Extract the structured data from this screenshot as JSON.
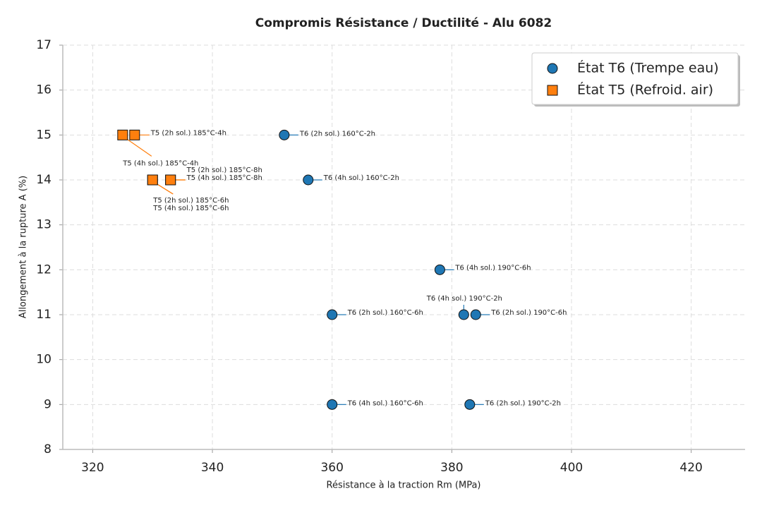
{
  "chart_data": {
    "type": "scatter",
    "title": "Compromis Résistance / Ductilité - Alu 6082",
    "xlabel": "Résistance à la traction Rm (MPa)",
    "ylabel": "Allongement à la rupture A (%)",
    "xlim": [
      315,
      429
    ],
    "ylim": [
      8,
      17
    ],
    "xticks": [
      320,
      340,
      360,
      380,
      400,
      420
    ],
    "yticks": [
      8,
      9,
      10,
      11,
      12,
      13,
      14,
      15,
      16,
      17
    ],
    "grid": true,
    "legend": "upper right",
    "series": [
      {
        "name": "État T6 (Trempe eau)",
        "color": "#1f77b4",
        "marker": "circle",
        "x": [
          352,
          356,
          378,
          360,
          382,
          384,
          360,
          383
        ],
        "values": [
          15,
          14,
          12,
          11,
          11,
          11,
          9,
          9
        ],
        "labels": [
          "T6 (2h sol.) 160°C-2h",
          "T6 (4h sol.) 160°C-2h",
          "T6 (4h sol.) 190°C-6h",
          "T6 (2h sol.) 160°C-6h",
          "T6 (4h sol.) 190°C-2h",
          "T6 (2h sol.) 190°C-6h",
          "T6 (4h sol.) 160°C-6h",
          "T6 (2h sol.) 190°C-2h"
        ]
      },
      {
        "name": "État T5 (Refroid. air)",
        "color": "#ff7f0e",
        "marker": "square",
        "x": [
          325,
          327,
          330,
          330,
          333,
          333
        ],
        "values": [
          15,
          15,
          14,
          14,
          14,
          14
        ],
        "labels": [
          "T5 (4h sol.) 185°C-4h",
          "T5 (2h sol.) 185°C-4h",
          "T5 (2h sol.) 185°C-6h",
          "T5 (4h sol.) 185°C-6h",
          "T5 (2h sol.) 185°C-8h",
          "T5 (4h sol.) 185°C-8h"
        ]
      }
    ]
  }
}
